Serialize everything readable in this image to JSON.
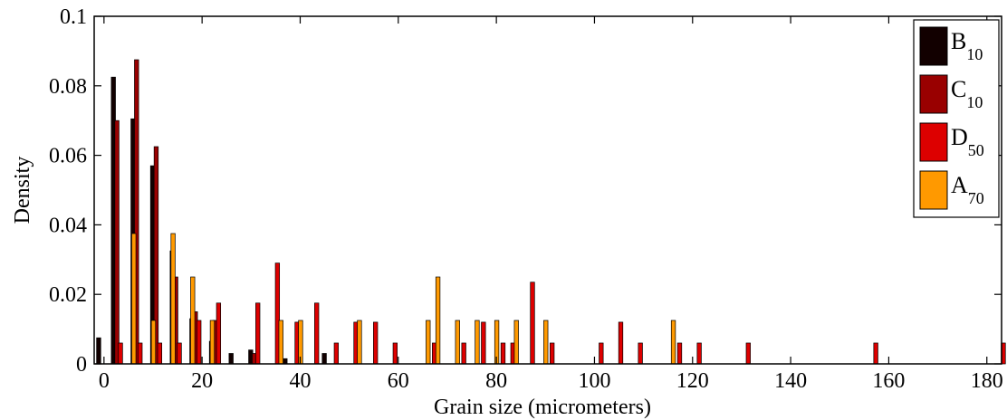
{
  "chart_data": {
    "type": "bar",
    "xlabel": "Grain size (micrometers)",
    "ylabel": "Density",
    "xlim": [
      -2,
      183
    ],
    "ylim": [
      0,
      0.1
    ],
    "xticks": [
      0,
      20,
      40,
      60,
      80,
      100,
      120,
      140,
      160,
      180
    ],
    "yticks": [
      0,
      0.02,
      0.04,
      0.06,
      0.08,
      0.1
    ],
    "ytick_labels": [
      "0",
      "0.02",
      "0.04",
      "0.06",
      "0.08",
      "0.1"
    ],
    "grid": false,
    "legend_position": "top-right",
    "series": [
      {
        "name": "B",
        "subscript": "10",
        "color": "#120000",
        "points": [
          [
            0,
            0.0075
          ],
          [
            3,
            0.0825
          ],
          [
            7,
            0.0705
          ],
          [
            11,
            0.057
          ],
          [
            15,
            0.0325
          ],
          [
            19,
            0.013
          ],
          [
            23,
            0.0065
          ],
          [
            27,
            0.003
          ],
          [
            31,
            0.004
          ],
          [
            38,
            0.0015
          ],
          [
            46,
            0.003
          ]
        ]
      },
      {
        "name": "C",
        "subscript": "10",
        "color": "#990000",
        "points": [
          [
            3,
            0.07
          ],
          [
            7,
            0.0875
          ],
          [
            11,
            0.0625
          ],
          [
            15,
            0.025
          ],
          [
            19,
            0.015
          ],
          [
            23,
            0.0125
          ],
          [
            31,
            0.003
          ]
        ]
      },
      {
        "name": "D",
        "subscript": "50",
        "color": "#dd0000",
        "points": [
          [
            3,
            0.006
          ],
          [
            7,
            0.006
          ],
          [
            11,
            0.006
          ],
          [
            15,
            0.006
          ],
          [
            19,
            0.0125
          ],
          [
            23,
            0.0175
          ],
          [
            31,
            0.0175
          ],
          [
            35,
            0.029
          ],
          [
            39,
            0.012
          ],
          [
            43,
            0.0175
          ],
          [
            47,
            0.006
          ],
          [
            51,
            0.012
          ],
          [
            55,
            0.012
          ],
          [
            59,
            0.006
          ],
          [
            67,
            0.006
          ],
          [
            73,
            0.006
          ],
          [
            77,
            0.012
          ],
          [
            81,
            0.006
          ],
          [
            83,
            0.006
          ],
          [
            87,
            0.0235
          ],
          [
            91,
            0.006
          ],
          [
            101,
            0.006
          ],
          [
            105,
            0.012
          ],
          [
            109,
            0.006
          ],
          [
            117,
            0.006
          ],
          [
            121,
            0.006
          ],
          [
            131,
            0.006
          ],
          [
            157,
            0.006
          ],
          [
            183,
            0.006
          ]
        ]
      },
      {
        "name": "A",
        "subscript": "70",
        "color": "#ff9900",
        "points": [
          [
            5,
            0.0375
          ],
          [
            9,
            0.0125
          ],
          [
            13,
            0.0375
          ],
          [
            17,
            0.025
          ],
          [
            21,
            0.0125
          ],
          [
            35,
            0.0125
          ],
          [
            39,
            0.0125
          ],
          [
            51,
            0.0125
          ],
          [
            65,
            0.0125
          ],
          [
            67,
            0.025
          ],
          [
            71,
            0.0125
          ],
          [
            75,
            0.0125
          ],
          [
            79,
            0.0125
          ],
          [
            83,
            0.0125
          ],
          [
            89,
            0.0125
          ],
          [
            115,
            0.0125
          ]
        ]
      }
    ]
  }
}
